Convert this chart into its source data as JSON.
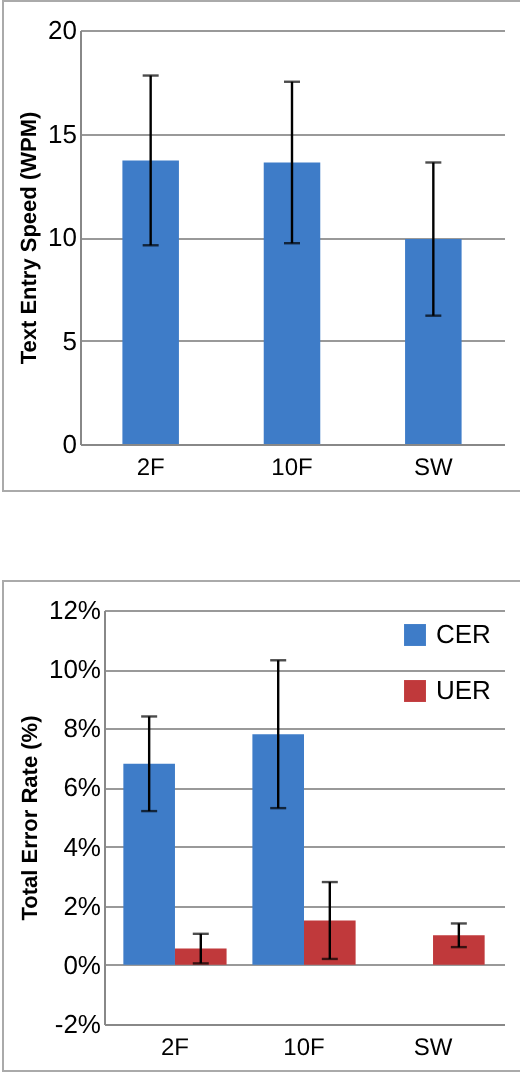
{
  "chart_data": [
    {
      "type": "bar",
      "ylabel": "Text Entry Speed (WPM)",
      "categories": [
        "2F",
        "10F",
        "SW"
      ],
      "values": [
        13.7,
        13.6,
        9.9
      ],
      "errors": [
        4.1,
        3.9,
        3.7
      ],
      "color": "#3e7cc8",
      "ylim": [
        0,
        20
      ],
      "yticks": [
        0,
        5,
        10,
        15,
        20
      ],
      "grid": "y"
    },
    {
      "type": "bar",
      "ylabel": "Total Error Rate (%)",
      "categories": [
        "2F",
        "10F",
        "SW"
      ],
      "series": [
        {
          "name": "CER",
          "color": "#3e7cc8",
          "values": [
            6.8,
            7.8,
            null
          ],
          "errors": [
            1.6,
            2.5,
            null
          ]
        },
        {
          "name": "UER",
          "color": "#c0393b",
          "values": [
            0.55,
            1.5,
            1.0
          ],
          "errors": [
            0.5,
            1.3,
            0.4
          ]
        }
      ],
      "ylim": [
        -2,
        12
      ],
      "yticks": [
        {
          "value": -2,
          "label": "-2%"
        },
        {
          "value": 0,
          "label": "0%"
        },
        {
          "value": 2,
          "label": "2%"
        },
        {
          "value": 4,
          "label": "4%"
        },
        {
          "value": 6,
          "label": "6%"
        },
        {
          "value": 8,
          "label": "8%"
        },
        {
          "value": 10,
          "label": "10%"
        },
        {
          "value": 12,
          "label": "12%"
        }
      ],
      "grid": "y",
      "legend": "top right"
    }
  ]
}
